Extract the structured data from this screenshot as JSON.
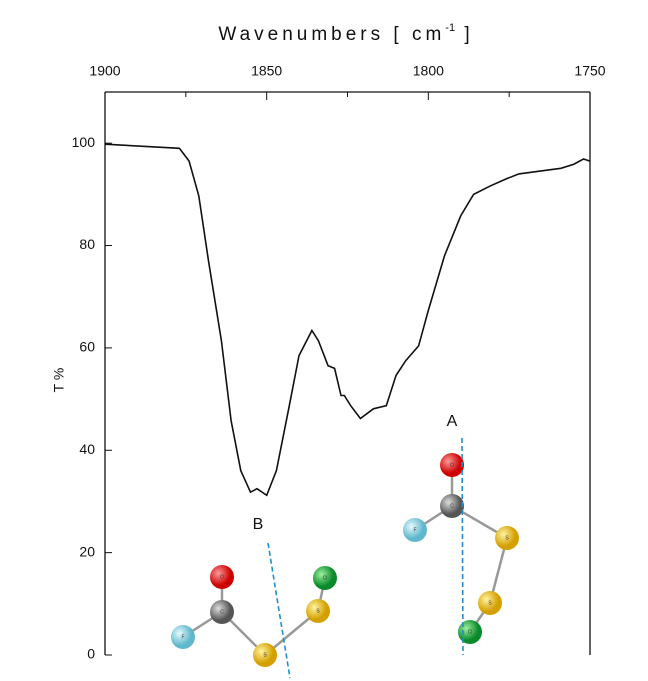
{
  "chart_data": {
    "type": "line",
    "xlabel": {
      "text": "Wavenumbers [ cm",
      "sup": "-1",
      "end": " ]"
    },
    "ylabel": "T %",
    "xlim": [
      1900,
      1750
    ],
    "xticks": [
      1900,
      1850,
      1800,
      1750
    ],
    "xminor": [
      1875,
      1825,
      1775
    ],
    "ylim": [
      0,
      110
    ],
    "yticks": [
      0,
      20,
      40,
      60,
      80,
      100
    ],
    "series": [
      {
        "color": "#111111",
        "x": [
          1900,
          1877,
          1874,
          1871,
          1868,
          1864,
          1861,
          1858,
          1855,
          1853,
          1850,
          1847,
          1843,
          1840,
          1836,
          1834,
          1831,
          1829,
          1827,
          1826,
          1824,
          1821,
          1817,
          1813,
          1810,
          1807,
          1803,
          1800,
          1795,
          1790,
          1786,
          1781,
          1776,
          1772,
          1766,
          1759,
          1755,
          1752,
          1750
        ],
        "values": [
          99.8,
          99,
          96.5,
          89.7,
          77,
          61.4,
          45.8,
          36,
          31.8,
          32.5,
          31.2,
          36,
          48.7,
          58.5,
          63.4,
          61.4,
          56.5,
          56,
          50.7,
          50.7,
          48.7,
          46.2,
          48.1,
          48.7,
          54.6,
          57.5,
          60.4,
          67.3,
          78,
          85.8,
          90,
          91.6,
          93,
          94,
          94.5,
          95.1,
          95.9,
          96.9,
          96.5
        ]
      }
    ],
    "molecules": [
      {
        "label": "A",
        "atoms": [
          "O",
          "C",
          "F",
          "S",
          "S",
          "Cl"
        ]
      },
      {
        "label": "B",
        "atoms": [
          "O",
          "C",
          "F",
          "S",
          "S",
          "Cl"
        ]
      }
    ]
  }
}
